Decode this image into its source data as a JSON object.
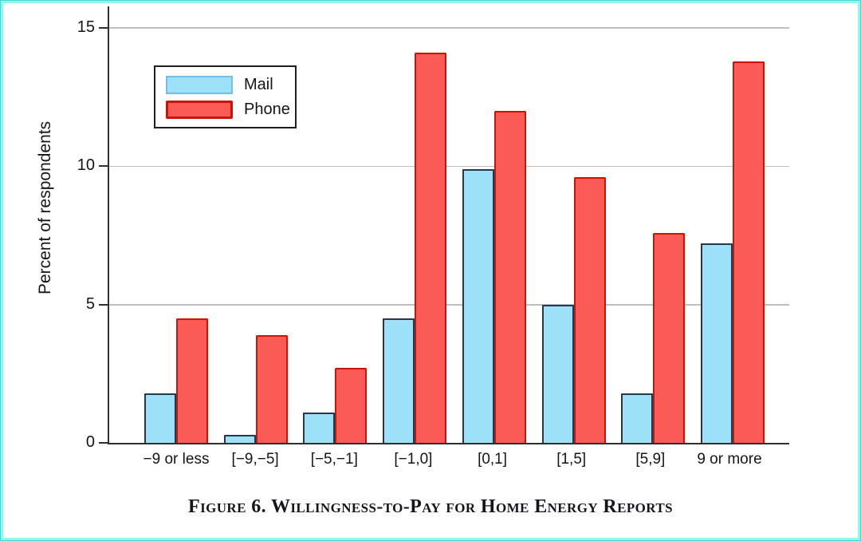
{
  "page": {
    "background": "#ffffff",
    "border_outer_color": "#45d7d2",
    "border_inner_color": "#90f6ef"
  },
  "caption": "Figure 6. Willingness-to-Pay for Home Energy Reports",
  "chart_data": {
    "type": "bar",
    "title": "",
    "xlabel": "",
    "ylabel": "Percent of respondents",
    "categories": [
      "−9 or less",
      "[−9,−5]",
      "[−5,−1]",
      "[−1,0]",
      "[0,1]",
      "[1,5]",
      "[5,9]",
      "9 or more"
    ],
    "series": [
      {
        "name": "Mail",
        "color": "#9de1f9",
        "border_color": "#27384d",
        "values": [
          1.8,
          0.3,
          1.1,
          4.5,
          9.9,
          5.0,
          1.8,
          7.2
        ]
      },
      {
        "name": "Phone",
        "color": "#fa5b57",
        "border_color": "#cc1306",
        "values": [
          4.5,
          3.9,
          2.7,
          14.1,
          12.0,
          9.6,
          7.6,
          13.8
        ]
      }
    ],
    "ylim": [
      0,
      15.8
    ],
    "yticks": [
      0,
      5,
      10,
      15
    ],
    "grid": "horizontal",
    "gridline_color": "#bfbfbf",
    "legend_position": "upper-left",
    "axis_color": "#2f2f2f"
  }
}
